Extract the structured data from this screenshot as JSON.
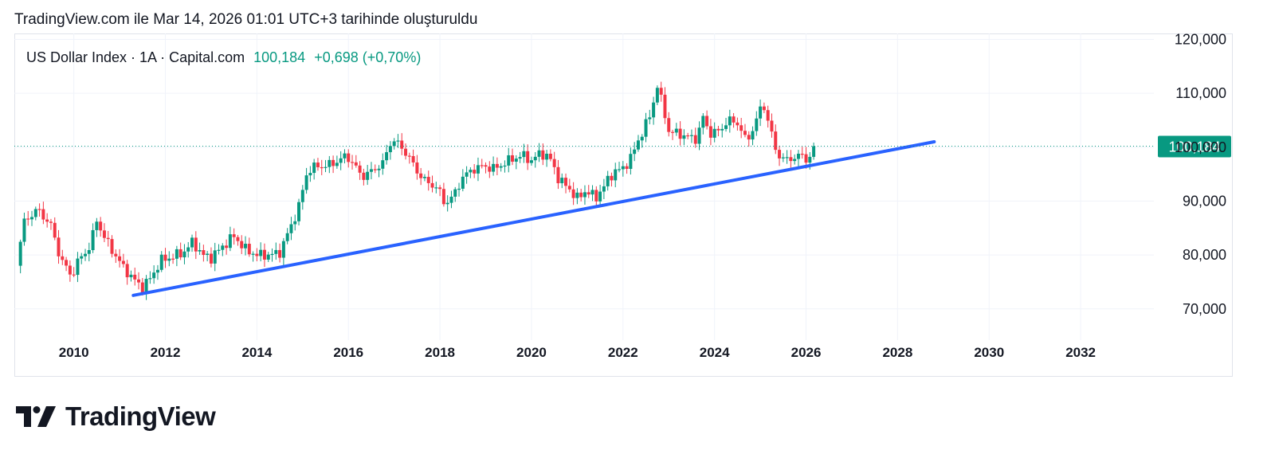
{
  "caption": "TradingView.com ile Mar 14, 2026 01:01 UTC+3 tarihinde oluşturuldu",
  "legend": {
    "symbol": "US Dollar Index · 1A · Capital.com",
    "price": "100,184",
    "change": "+0,698 (+0,70%)"
  },
  "brand": {
    "logo_text": "TradingView",
    "icon": "tradingview-logo-icon"
  },
  "colors": {
    "up": "#089981",
    "down": "#f23645",
    "trendline": "#2962ff",
    "price_line": "#089981",
    "grid": "#f0f3fa",
    "axis_text": "#131722"
  },
  "chart_data": {
    "type": "candlestick",
    "timeframe": "1M",
    "x_range": [
      2008.7,
      2033.6
    ],
    "ylim": [
      64200,
      121100
    ],
    "x_ticks": [
      "2010",
      "2012",
      "2014",
      "2016",
      "2018",
      "2020",
      "2022",
      "2024",
      "2026",
      "2028",
      "2030",
      "2032"
    ],
    "y_ticks": [
      {
        "value": 70000,
        "label": "70,000"
      },
      {
        "value": 80000,
        "label": "80,000"
      },
      {
        "value": 90000,
        "label": "90,000"
      },
      {
        "value": 100000,
        "label": "100,000"
      },
      {
        "value": 110000,
        "label": "110,000"
      },
      {
        "value": 120000,
        "label": "120,000"
      }
    ],
    "last_price": {
      "value": 100184,
      "label": "100,184"
    },
    "trendline": {
      "from": [
        2011.3,
        72500
      ],
      "to": [
        2028.8,
        101000
      ]
    },
    "close_path": [
      [
        2008.75,
        78000
      ],
      [
        2008.9,
        86000
      ],
      [
        2009.2,
        88500
      ],
      [
        2009.5,
        85500
      ],
      [
        2009.7,
        79500
      ],
      [
        2009.95,
        76000
      ],
      [
        2010.1,
        79000
      ],
      [
        2010.35,
        81500
      ],
      [
        2010.5,
        86500
      ],
      [
        2010.65,
        83500
      ],
      [
        2010.9,
        80000
      ],
      [
        2011.1,
        77500
      ],
      [
        2011.3,
        75500
      ],
      [
        2011.5,
        74000
      ],
      [
        2011.7,
        76000
      ],
      [
        2011.9,
        79000
      ],
      [
        2012.1,
        79500
      ],
      [
        2012.4,
        80500
      ],
      [
        2012.6,
        82500
      ],
      [
        2012.8,
        80000
      ],
      [
        2013.0,
        79500
      ],
      [
        2013.3,
        82000
      ],
      [
        2013.5,
        83500
      ],
      [
        2013.75,
        81000
      ],
      [
        2014.0,
        80000
      ],
      [
        2014.3,
        80000
      ],
      [
        2014.5,
        80500
      ],
      [
        2014.7,
        84500
      ],
      [
        2014.9,
        88500
      ],
      [
        2015.1,
        95500
      ],
      [
        2015.3,
        96500
      ],
      [
        2015.5,
        96500
      ],
      [
        2015.8,
        97500
      ],
      [
        2015.95,
        98500
      ],
      [
        2016.1,
        97000
      ],
      [
        2016.3,
        94500
      ],
      [
        2016.5,
        95500
      ],
      [
        2016.75,
        97000
      ],
      [
        2016.95,
        101500
      ],
      [
        2017.1,
        100500
      ],
      [
        2017.3,
        98500
      ],
      [
        2017.5,
        95500
      ],
      [
        2017.7,
        93500
      ],
      [
        2017.95,
        92500
      ],
      [
        2018.1,
        89500
      ],
      [
        2018.3,
        91000
      ],
      [
        2018.5,
        94500
      ],
      [
        2018.75,
        96000
      ],
      [
        2018.95,
        96500
      ],
      [
        2019.2,
        96000
      ],
      [
        2019.5,
        97500
      ],
      [
        2019.8,
        98500
      ],
      [
        2020.0,
        97500
      ],
      [
        2020.2,
        99000
      ],
      [
        2020.4,
        98000
      ],
      [
        2020.6,
        94000
      ],
      [
        2020.8,
        92500
      ],
      [
        2021.0,
        90500
      ],
      [
        2021.2,
        92000
      ],
      [
        2021.4,
        90500
      ],
      [
        2021.6,
        93000
      ],
      [
        2021.8,
        95500
      ],
      [
        2022.0,
        96000
      ],
      [
        2022.2,
        98500
      ],
      [
        2022.4,
        102500
      ],
      [
        2022.6,
        106000
      ],
      [
        2022.75,
        111500
      ],
      [
        2022.9,
        106500
      ],
      [
        2023.0,
        103000
      ],
      [
        2023.2,
        102500
      ],
      [
        2023.4,
        102000
      ],
      [
        2023.6,
        101500
      ],
      [
        2023.75,
        105500
      ],
      [
        2023.9,
        102500
      ],
      [
        2024.1,
        103000
      ],
      [
        2024.3,
        105000
      ],
      [
        2024.5,
        104500
      ],
      [
        2024.7,
        101000
      ],
      [
        2024.9,
        104500
      ],
      [
        2025.05,
        108500
      ],
      [
        2025.2,
        104000
      ],
      [
        2025.35,
        99000
      ],
      [
        2025.55,
        97500
      ],
      [
        2025.7,
        98000
      ],
      [
        2025.9,
        98500
      ],
      [
        2026.05,
        97500
      ],
      [
        2026.2,
        100184
      ]
    ]
  }
}
